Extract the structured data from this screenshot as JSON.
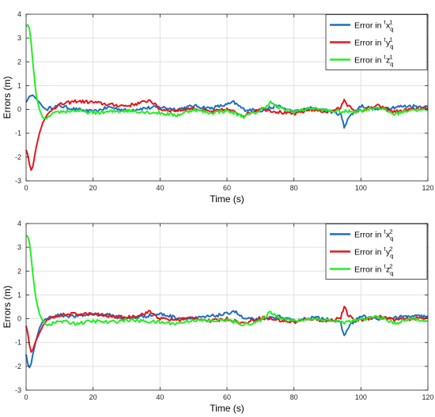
{
  "chart_data": [
    {
      "type": "line",
      "xlabel": "Time (s)",
      "ylabel": "Errors (m)",
      "xlim": [
        0,
        120
      ],
      "ylim": [
        -3,
        4
      ],
      "xticks": [
        0,
        20,
        40,
        60,
        80,
        100,
        120
      ],
      "yticks": [
        -3,
        -2,
        -1,
        0,
        1,
        2,
        3,
        4
      ],
      "grid": true,
      "legend_position": "top-right",
      "series": [
        {
          "name": "Error in ^tx_q^1",
          "prefix": "Error in ",
          "pre_sup": "t",
          "var": "x",
          "sub": "q",
          "sup": "1",
          "color": "#1f6fbf",
          "x": [
            0,
            1,
            2,
            3,
            4,
            5,
            6,
            8,
            10,
            15,
            20,
            25,
            30,
            35,
            40,
            45,
            50,
            55,
            60,
            62,
            65,
            70,
            75,
            80,
            85,
            90,
            94,
            95,
            96,
            98,
            100,
            105,
            110,
            115,
            120
          ],
          "y": [
            0.3,
            0.55,
            0.6,
            0.45,
            0.3,
            0.1,
            0.0,
            0.1,
            0.15,
            0.0,
            -0.1,
            0.1,
            -0.05,
            0.05,
            0.1,
            0.0,
            0.15,
            0.05,
            0.2,
            0.3,
            0.0,
            -0.05,
            0.15,
            -0.1,
            0.05,
            -0.05,
            -0.2,
            -0.75,
            -0.4,
            -0.1,
            0.15,
            0.0,
            0.1,
            0.15,
            0.1
          ]
        },
        {
          "name": "Error in ^ty_q^1",
          "prefix": "Error in ",
          "pre_sup": "t",
          "var": "y",
          "sub": "q",
          "sup": "1",
          "color": "#e3171c",
          "x": [
            0,
            0.5,
            1,
            1.5,
            2,
            3,
            4,
            5,
            6,
            8,
            10,
            15,
            20,
            25,
            30,
            35,
            37,
            40,
            45,
            50,
            55,
            60,
            65,
            70,
            75,
            80,
            85,
            90,
            94,
            95,
            96,
            98,
            100,
            105,
            110,
            115,
            120
          ],
          "y": [
            -1.7,
            -1.9,
            -2.3,
            -2.55,
            -2.4,
            -1.6,
            -1.0,
            -0.55,
            -0.3,
            0.05,
            0.2,
            0.35,
            0.3,
            0.2,
            0.15,
            0.3,
            0.4,
            0.0,
            -0.05,
            0.05,
            -0.1,
            0.0,
            -0.25,
            0.05,
            -0.1,
            -0.2,
            0.0,
            -0.1,
            0.05,
            0.45,
            0.2,
            -0.1,
            -0.05,
            0.15,
            -0.1,
            0.0,
            0.05
          ]
        },
        {
          "name": "Error in ^tz_q^1",
          "prefix": "Error in ",
          "pre_sup": "t",
          "var": "z",
          "sub": "q",
          "sup": "1",
          "color": "#23ee23",
          "x": [
            0,
            0.5,
            1,
            1.5,
            2,
            2.5,
            3,
            4,
            5,
            6,
            8,
            10,
            15,
            20,
            25,
            30,
            35,
            40,
            45,
            50,
            55,
            60,
            65,
            70,
            73,
            75,
            80,
            85,
            90,
            95,
            100,
            105,
            110,
            115,
            120
          ],
          "y": [
            3.5,
            3.55,
            3.4,
            2.8,
            2.0,
            1.3,
            0.6,
            0.0,
            -0.35,
            -0.4,
            -0.2,
            -0.1,
            -0.05,
            -0.15,
            -0.1,
            -0.05,
            -0.1,
            -0.15,
            -0.25,
            0.0,
            -0.15,
            -0.05,
            -0.3,
            -0.05,
            0.3,
            0.1,
            -0.1,
            0.05,
            -0.05,
            -0.1,
            -0.05,
            0.1,
            -0.2,
            0.0,
            -0.05
          ]
        }
      ]
    },
    {
      "type": "line",
      "xlabel": "Time (s)",
      "ylabel": "Errors (m)",
      "xlim": [
        0,
        120
      ],
      "ylim": [
        -3,
        4
      ],
      "xticks": [
        0,
        20,
        40,
        60,
        80,
        100,
        120
      ],
      "yticks": [
        -3,
        -2,
        -1,
        0,
        1,
        2,
        3,
        4
      ],
      "grid": true,
      "legend_position": "top-right",
      "series": [
        {
          "name": "Error in ^tx_q^2",
          "prefix": "Error in ",
          "pre_sup": "t",
          "var": "x",
          "sub": "q",
          "sup": "2",
          "color": "#1f6fbf",
          "x": [
            0,
            0.5,
            1,
            1.5,
            2,
            3,
            4,
            5,
            6,
            8,
            10,
            15,
            20,
            25,
            30,
            35,
            40,
            45,
            50,
            55,
            60,
            62,
            65,
            70,
            75,
            80,
            85,
            90,
            94,
            95,
            96,
            98,
            100,
            105,
            110,
            115,
            120
          ],
          "y": [
            -1.5,
            -1.9,
            -2.05,
            -1.9,
            -1.5,
            -0.9,
            -0.4,
            -0.1,
            0.0,
            0.1,
            0.15,
            0.1,
            0.2,
            0.15,
            0.0,
            0.1,
            0.2,
            0.05,
            0.0,
            0.1,
            0.2,
            0.35,
            0.0,
            -0.05,
            0.1,
            -0.1,
            0.05,
            0.0,
            -0.2,
            -0.75,
            -0.4,
            -0.1,
            0.1,
            0.0,
            0.05,
            0.1,
            0.1
          ]
        },
        {
          "name": "Error in ^ty_q^2",
          "prefix": "Error in ",
          "pre_sup": "t",
          "var": "y",
          "sub": "q",
          "sup": "2",
          "color": "#e3171c",
          "x": [
            0,
            0.5,
            1,
            1.5,
            2,
            3,
            4,
            5,
            6,
            8,
            10,
            15,
            20,
            25,
            30,
            35,
            37,
            40,
            45,
            50,
            55,
            60,
            65,
            70,
            75,
            80,
            85,
            90,
            94,
            95,
            96,
            98,
            100,
            105,
            110,
            115,
            120
          ],
          "y": [
            -0.3,
            -0.6,
            -1.1,
            -1.4,
            -1.3,
            -0.9,
            -0.6,
            -0.3,
            -0.1,
            0.05,
            0.15,
            0.2,
            0.2,
            0.1,
            0.05,
            0.2,
            0.3,
            0.0,
            -0.05,
            0.05,
            -0.1,
            0.0,
            -0.2,
            0.05,
            -0.05,
            -0.15,
            0.0,
            -0.1,
            0.05,
            0.5,
            0.2,
            -0.1,
            -0.05,
            0.1,
            -0.05,
            0.0,
            0.05
          ]
        },
        {
          "name": "Error in ^tz_q^2",
          "prefix": "Error in ",
          "pre_sup": "t",
          "var": "z",
          "sub": "q",
          "sup": "2",
          "color": "#23ee23",
          "x": [
            0,
            0.5,
            1,
            1.5,
            2,
            2.5,
            3,
            4,
            5,
            6,
            8,
            10,
            15,
            20,
            25,
            30,
            35,
            40,
            45,
            50,
            55,
            60,
            65,
            70,
            73,
            75,
            80,
            85,
            90,
            95,
            100,
            105,
            110,
            115,
            120
          ],
          "y": [
            3.5,
            3.45,
            3.2,
            2.6,
            1.9,
            1.3,
            0.8,
            0.2,
            -0.1,
            -0.25,
            -0.2,
            -0.1,
            -0.2,
            -0.1,
            -0.15,
            -0.05,
            -0.1,
            -0.15,
            -0.2,
            -0.05,
            -0.1,
            -0.05,
            -0.25,
            -0.1,
            0.3,
            0.1,
            -0.1,
            0.0,
            -0.05,
            -0.15,
            -0.05,
            0.1,
            -0.2,
            0.0,
            -0.1
          ]
        }
      ]
    }
  ]
}
